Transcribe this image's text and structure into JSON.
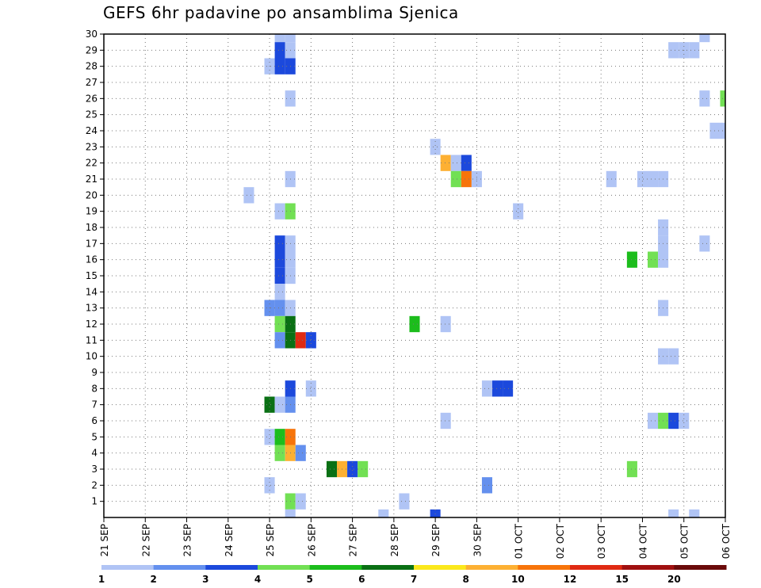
{
  "chart_data": {
    "type": "heatmap",
    "title": "GEFS 6hr padavine po ansamblima Sjenica",
    "xlabel": "",
    "ylabel": "",
    "x_ticks": [
      "21 SEP",
      "22 SEP",
      "23 SEP",
      "24 SEP",
      "25 SEP",
      "26 SEP",
      "27 SEP",
      "28 SEP",
      "29 SEP",
      "30 SEP",
      "01 OCT",
      "02 OCT",
      "03 OCT",
      "04 OCT",
      "05 OCT",
      "06 OCT"
    ],
    "xlim": [
      0,
      60
    ],
    "x_unit": "6-hour steps from 21 SEP 00Z",
    "y_ticks": [
      1,
      2,
      3,
      4,
      5,
      6,
      7,
      8,
      9,
      10,
      11,
      12,
      13,
      14,
      15,
      16,
      17,
      18,
      19,
      20,
      21,
      22,
      23,
      24,
      25,
      26,
      27,
      28,
      29,
      30
    ],
    "ylim": [
      0,
      30
    ],
    "grid": true,
    "legend": {
      "placement": "bottom",
      "labels": [
        "1",
        "2",
        "3",
        "4",
        "5",
        "6",
        "7",
        "8",
        "10",
        "12",
        "15",
        "20"
      ],
      "colors": [
        "#b0c4f5",
        "#6490ee",
        "#1c49dc",
        "#72e054",
        "#1cbd1c",
        "#0a7014",
        "#fbe81c",
        "#fdb033",
        "#f7740a",
        "#e02a12",
        "#a01010",
        "#6a0a0a"
      ]
    },
    "cells": [
      {
        "t": 17,
        "m": 30,
        "lvl": 1
      },
      {
        "t": 18,
        "m": 30,
        "lvl": 1
      },
      {
        "t": 17,
        "m": 29,
        "lvl": 3
      },
      {
        "t": 18,
        "m": 29,
        "lvl": 1
      },
      {
        "t": 16,
        "m": 28,
        "lvl": 1
      },
      {
        "t": 17,
        "m": 28,
        "lvl": 3
      },
      {
        "t": 18,
        "m": 28,
        "lvl": 3
      },
      {
        "t": 18,
        "m": 26,
        "lvl": 1
      },
      {
        "t": 18,
        "m": 21,
        "lvl": 1
      },
      {
        "t": 14,
        "m": 20,
        "lvl": 1
      },
      {
        "t": 17,
        "m": 19,
        "lvl": 1
      },
      {
        "t": 18,
        "m": 19,
        "lvl": 4
      },
      {
        "t": 17,
        "m": 17,
        "lvl": 3
      },
      {
        "t": 18,
        "m": 17,
        "lvl": 1
      },
      {
        "t": 17,
        "m": 16,
        "lvl": 3
      },
      {
        "t": 18,
        "m": 16,
        "lvl": 1
      },
      {
        "t": 17,
        "m": 15,
        "lvl": 3
      },
      {
        "t": 18,
        "m": 15,
        "lvl": 1
      },
      {
        "t": 17,
        "m": 14,
        "lvl": 1
      },
      {
        "t": 16,
        "m": 13,
        "lvl": 2
      },
      {
        "t": 17,
        "m": 13,
        "lvl": 2
      },
      {
        "t": 18,
        "m": 13,
        "lvl": 1
      },
      {
        "t": 17,
        "m": 12,
        "lvl": 4
      },
      {
        "t": 18,
        "m": 12,
        "lvl": 6
      },
      {
        "t": 17,
        "m": 11,
        "lvl": 2
      },
      {
        "t": 18,
        "m": 11,
        "lvl": 6
      },
      {
        "t": 19,
        "m": 11,
        "lvl": 10
      },
      {
        "t": 20,
        "m": 11,
        "lvl": 3
      },
      {
        "t": 18,
        "m": 8,
        "lvl": 3
      },
      {
        "t": 20,
        "m": 8,
        "lvl": 1
      },
      {
        "t": 16,
        "m": 7,
        "lvl": 6
      },
      {
        "t": 17,
        "m": 7,
        "lvl": 1
      },
      {
        "t": 18,
        "m": 7,
        "lvl": 2
      },
      {
        "t": 16,
        "m": 5,
        "lvl": 1
      },
      {
        "t": 17,
        "m": 5,
        "lvl": 5
      },
      {
        "t": 18,
        "m": 5,
        "lvl": 9
      },
      {
        "t": 17,
        "m": 4,
        "lvl": 4
      },
      {
        "t": 18,
        "m": 4,
        "lvl": 8
      },
      {
        "t": 19,
        "m": 4,
        "lvl": 2
      },
      {
        "t": 16,
        "m": 2,
        "lvl": 1
      },
      {
        "t": 18,
        "m": 1,
        "lvl": 4
      },
      {
        "t": 19,
        "m": 1,
        "lvl": 1
      },
      {
        "t": 18,
        "m": 0,
        "lvl": 1
      },
      {
        "t": 22,
        "m": 3,
        "lvl": 6
      },
      {
        "t": 23,
        "m": 3,
        "lvl": 8
      },
      {
        "t": 24,
        "m": 3,
        "lvl": 3
      },
      {
        "t": 25,
        "m": 3,
        "lvl": 4
      },
      {
        "t": 27,
        "m": 0,
        "lvl": 1
      },
      {
        "t": 29,
        "m": 1,
        "lvl": 1
      },
      {
        "t": 30,
        "m": 12,
        "lvl": 5
      },
      {
        "t": 32,
        "m": 0,
        "lvl": 3
      },
      {
        "t": 32,
        "m": 23,
        "lvl": 1
      },
      {
        "t": 33,
        "m": 22,
        "lvl": 8
      },
      {
        "t": 34,
        "m": 22,
        "lvl": 1
      },
      {
        "t": 35,
        "m": 22,
        "lvl": 3
      },
      {
        "t": 34,
        "m": 21,
        "lvl": 4
      },
      {
        "t": 35,
        "m": 21,
        "lvl": 9
      },
      {
        "t": 36,
        "m": 21,
        "lvl": 1
      },
      {
        "t": 33,
        "m": 12,
        "lvl": 1
      },
      {
        "t": 33,
        "m": 6,
        "lvl": 1
      },
      {
        "t": 37,
        "m": 8,
        "lvl": 1
      },
      {
        "t": 38,
        "m": 8,
        "lvl": 3
      },
      {
        "t": 39,
        "m": 8,
        "lvl": 3
      },
      {
        "t": 37,
        "m": 2,
        "lvl": 2
      },
      {
        "t": 40,
        "m": 19,
        "lvl": 1
      },
      {
        "t": 49,
        "m": 21,
        "lvl": 1
      },
      {
        "t": 51,
        "m": 16,
        "lvl": 5
      },
      {
        "t": 51,
        "m": 3,
        "lvl": 4
      },
      {
        "t": 52,
        "m": 21,
        "lvl": 1
      },
      {
        "t": 53,
        "m": 21,
        "lvl": 1
      },
      {
        "t": 54,
        "m": 21,
        "lvl": 1
      },
      {
        "t": 53,
        "m": 16,
        "lvl": 4
      },
      {
        "t": 54,
        "m": 16,
        "lvl": 1
      },
      {
        "t": 54,
        "m": 17,
        "lvl": 1
      },
      {
        "t": 54,
        "m": 18,
        "lvl": 1
      },
      {
        "t": 54,
        "m": 13,
        "lvl": 1
      },
      {
        "t": 54,
        "m": 10,
        "lvl": 1
      },
      {
        "t": 55,
        "m": 10,
        "lvl": 1
      },
      {
        "t": 53,
        "m": 6,
        "lvl": 1
      },
      {
        "t": 54,
        "m": 6,
        "lvl": 4
      },
      {
        "t": 55,
        "m": 6,
        "lvl": 3
      },
      {
        "t": 56,
        "m": 6,
        "lvl": 1
      },
      {
        "t": 55,
        "m": 0,
        "lvl": 1
      },
      {
        "t": 57,
        "m": 0,
        "lvl": 1
      },
      {
        "t": 55,
        "m": 29,
        "lvl": 1
      },
      {
        "t": 56,
        "m": 29,
        "lvl": 1
      },
      {
        "t": 57,
        "m": 29,
        "lvl": 1
      },
      {
        "t": 58,
        "m": 30,
        "lvl": 1
      },
      {
        "t": 58,
        "m": 26,
        "lvl": 1
      },
      {
        "t": 60,
        "m": 26,
        "lvl": 4
      },
      {
        "t": 59,
        "m": 24,
        "lvl": 1
      },
      {
        "t": 60,
        "m": 24,
        "lvl": 1
      },
      {
        "t": 58,
        "m": 17,
        "lvl": 1
      }
    ]
  }
}
